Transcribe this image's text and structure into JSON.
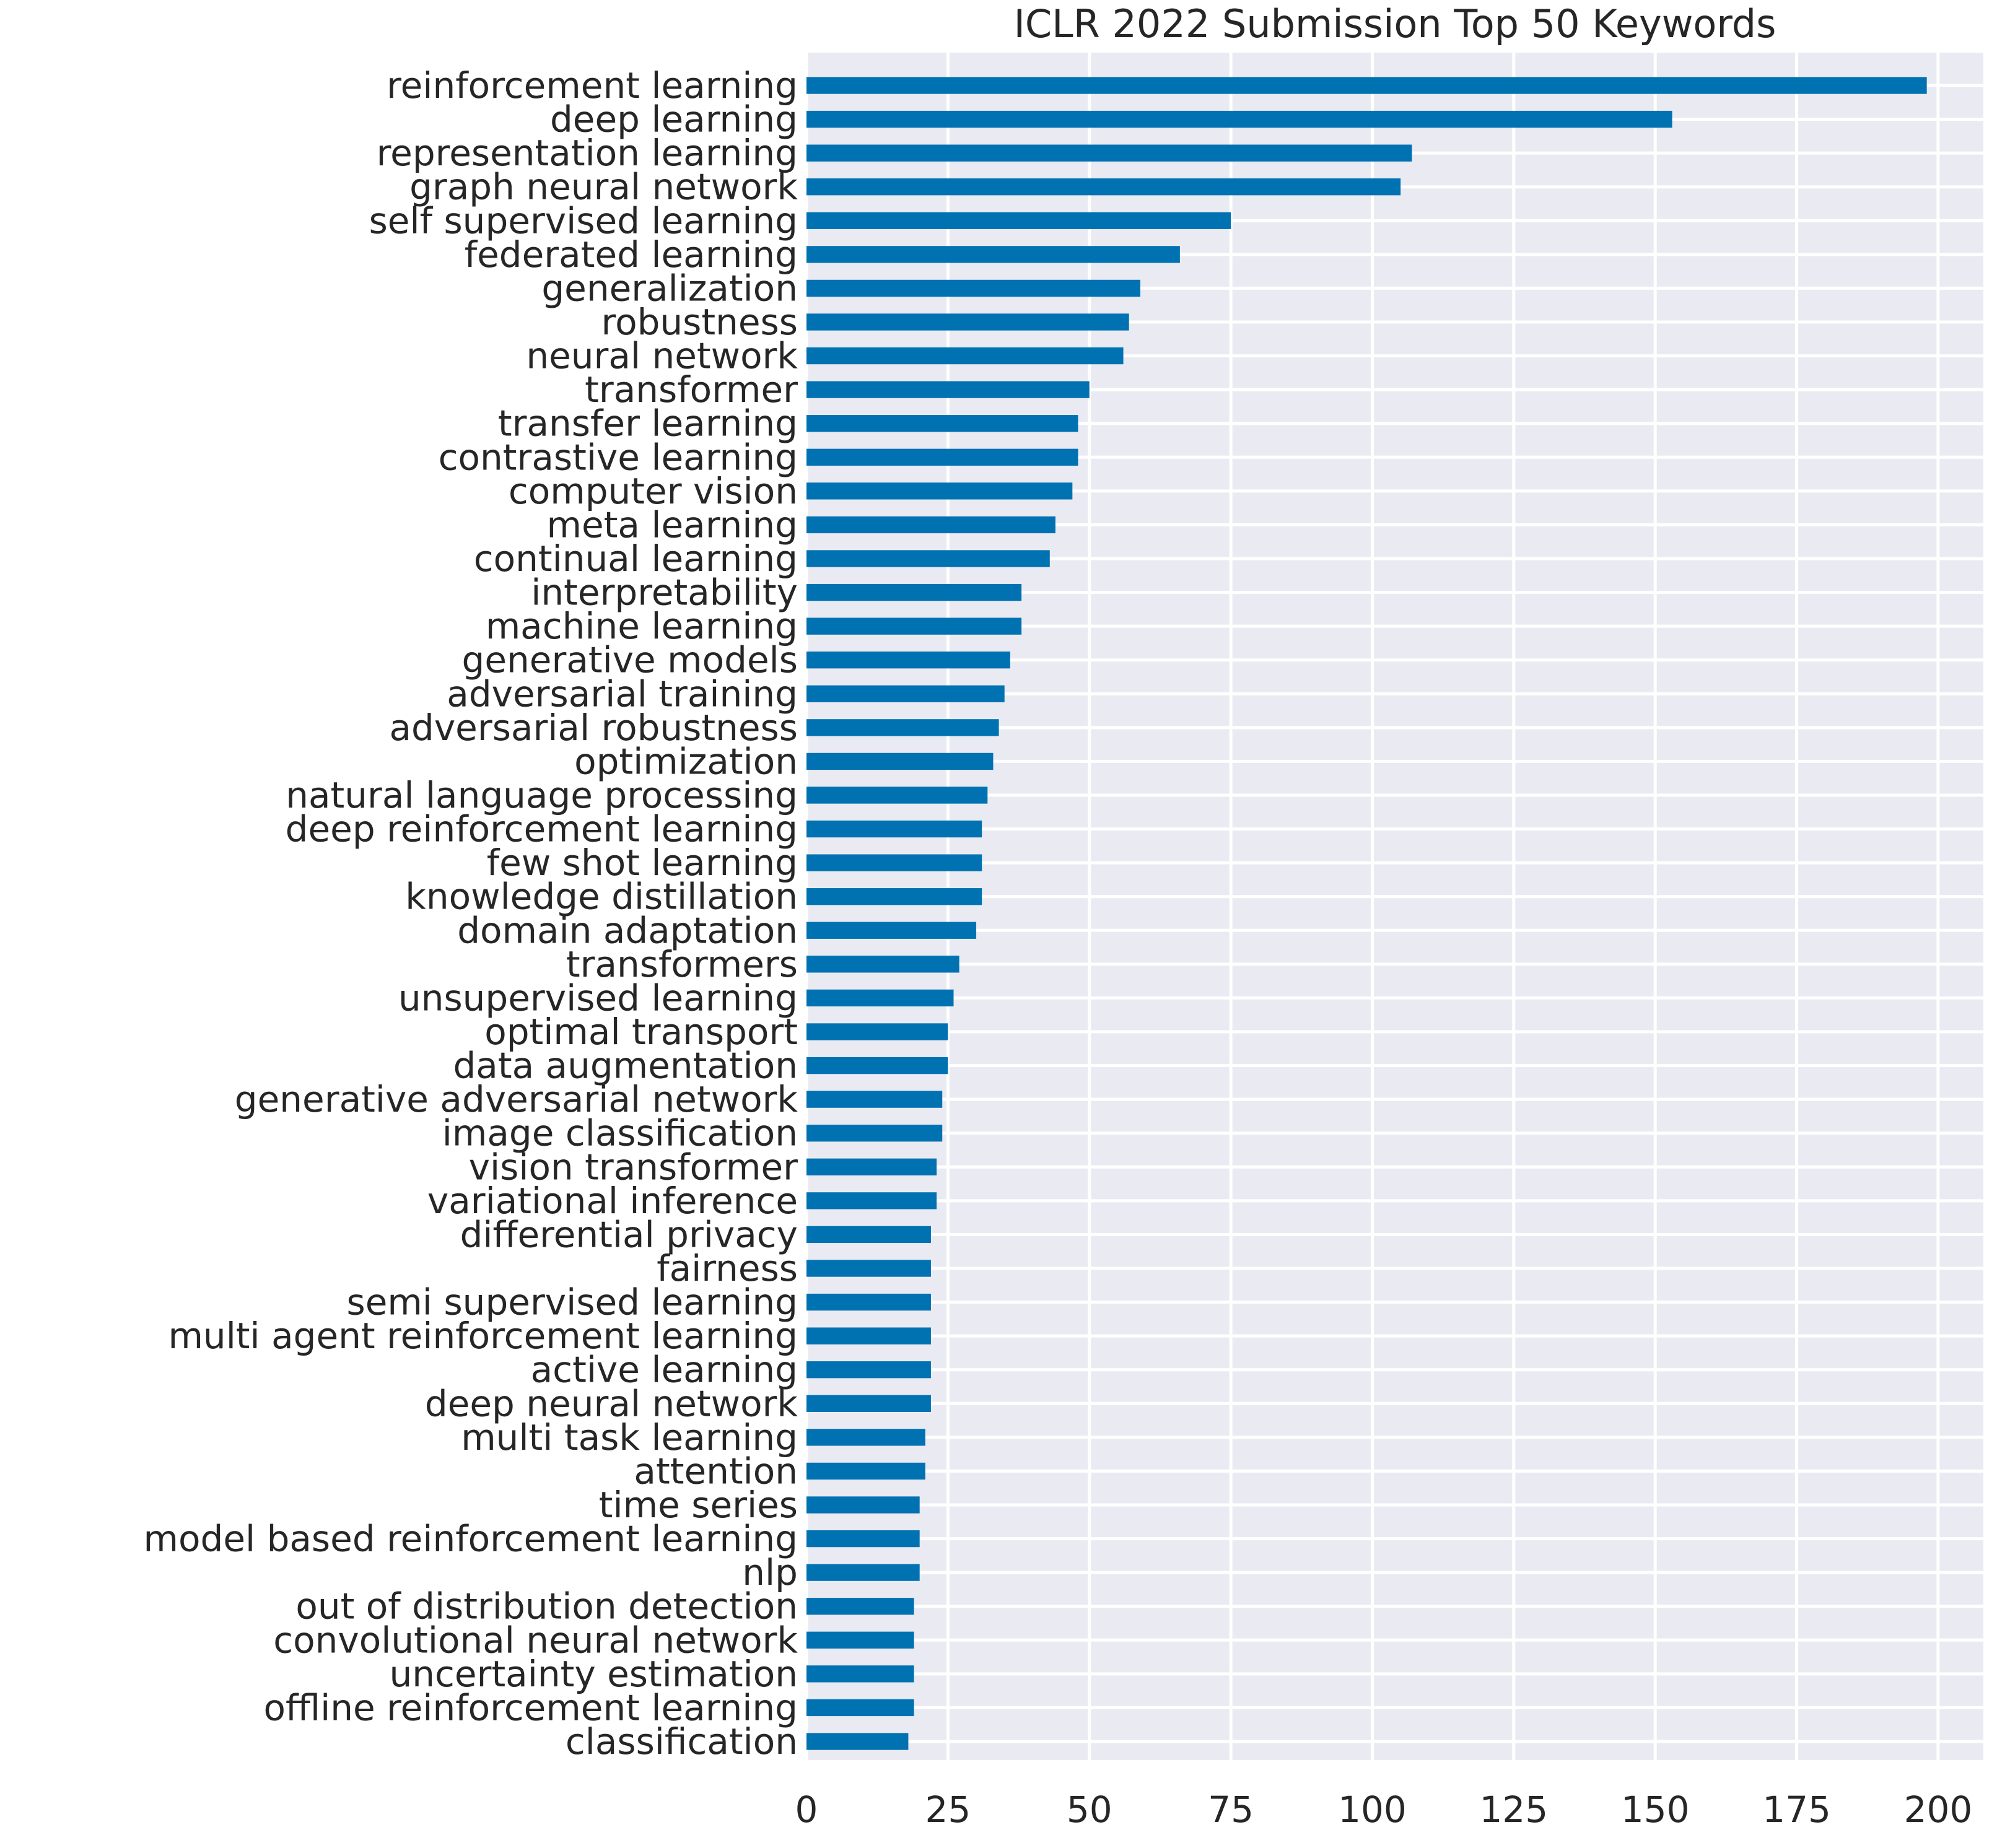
{
  "chart_data": {
    "type": "bar",
    "orientation": "horizontal",
    "title": "ICLR 2022 Submission Top 50 Keywords",
    "xlabel": "",
    "ylabel": "",
    "xlim": [
      0,
      208
    ],
    "xticks": [
      0,
      25,
      50,
      75,
      100,
      125,
      150,
      175,
      200
    ],
    "grid": true,
    "bar_color": "#0072b2",
    "background_color": "#eaeaf2",
    "grid_color": "#ffffff",
    "categories": [
      "reinforcement learning",
      "deep learning",
      "representation learning",
      "graph neural network",
      "self supervised learning",
      "federated learning",
      "generalization",
      "robustness",
      "neural network",
      "transformer",
      "transfer learning",
      "contrastive learning",
      "computer vision",
      "meta learning",
      "continual learning",
      "interpretability",
      "machine learning",
      "generative models",
      "adversarial training",
      "adversarial robustness",
      "optimization",
      "natural language processing",
      "deep reinforcement learning",
      "few shot learning",
      "knowledge distillation",
      "domain adaptation",
      "transformers",
      "unsupervised learning",
      "optimal transport",
      "data augmentation",
      "generative adversarial network",
      "image classification",
      "vision transformer",
      "variational inference",
      "differential privacy",
      "fairness",
      "semi supervised learning",
      "multi agent reinforcement learning",
      "active learning",
      "deep neural network",
      "multi task learning",
      "attention",
      "time series",
      "model based reinforcement learning",
      "nlp",
      "out of distribution detection",
      "convolutional neural network",
      "uncertainty estimation",
      "offline reinforcement learning",
      "classification"
    ],
    "values": [
      198,
      153,
      107,
      105,
      75,
      66,
      59,
      57,
      56,
      50,
      48,
      48,
      47,
      44,
      43,
      38,
      38,
      36,
      35,
      34,
      33,
      32,
      31,
      31,
      31,
      30,
      27,
      26,
      25,
      25,
      24,
      24,
      23,
      23,
      22,
      22,
      22,
      22,
      22,
      22,
      21,
      21,
      20,
      20,
      20,
      19,
      19,
      19,
      19,
      18
    ]
  }
}
